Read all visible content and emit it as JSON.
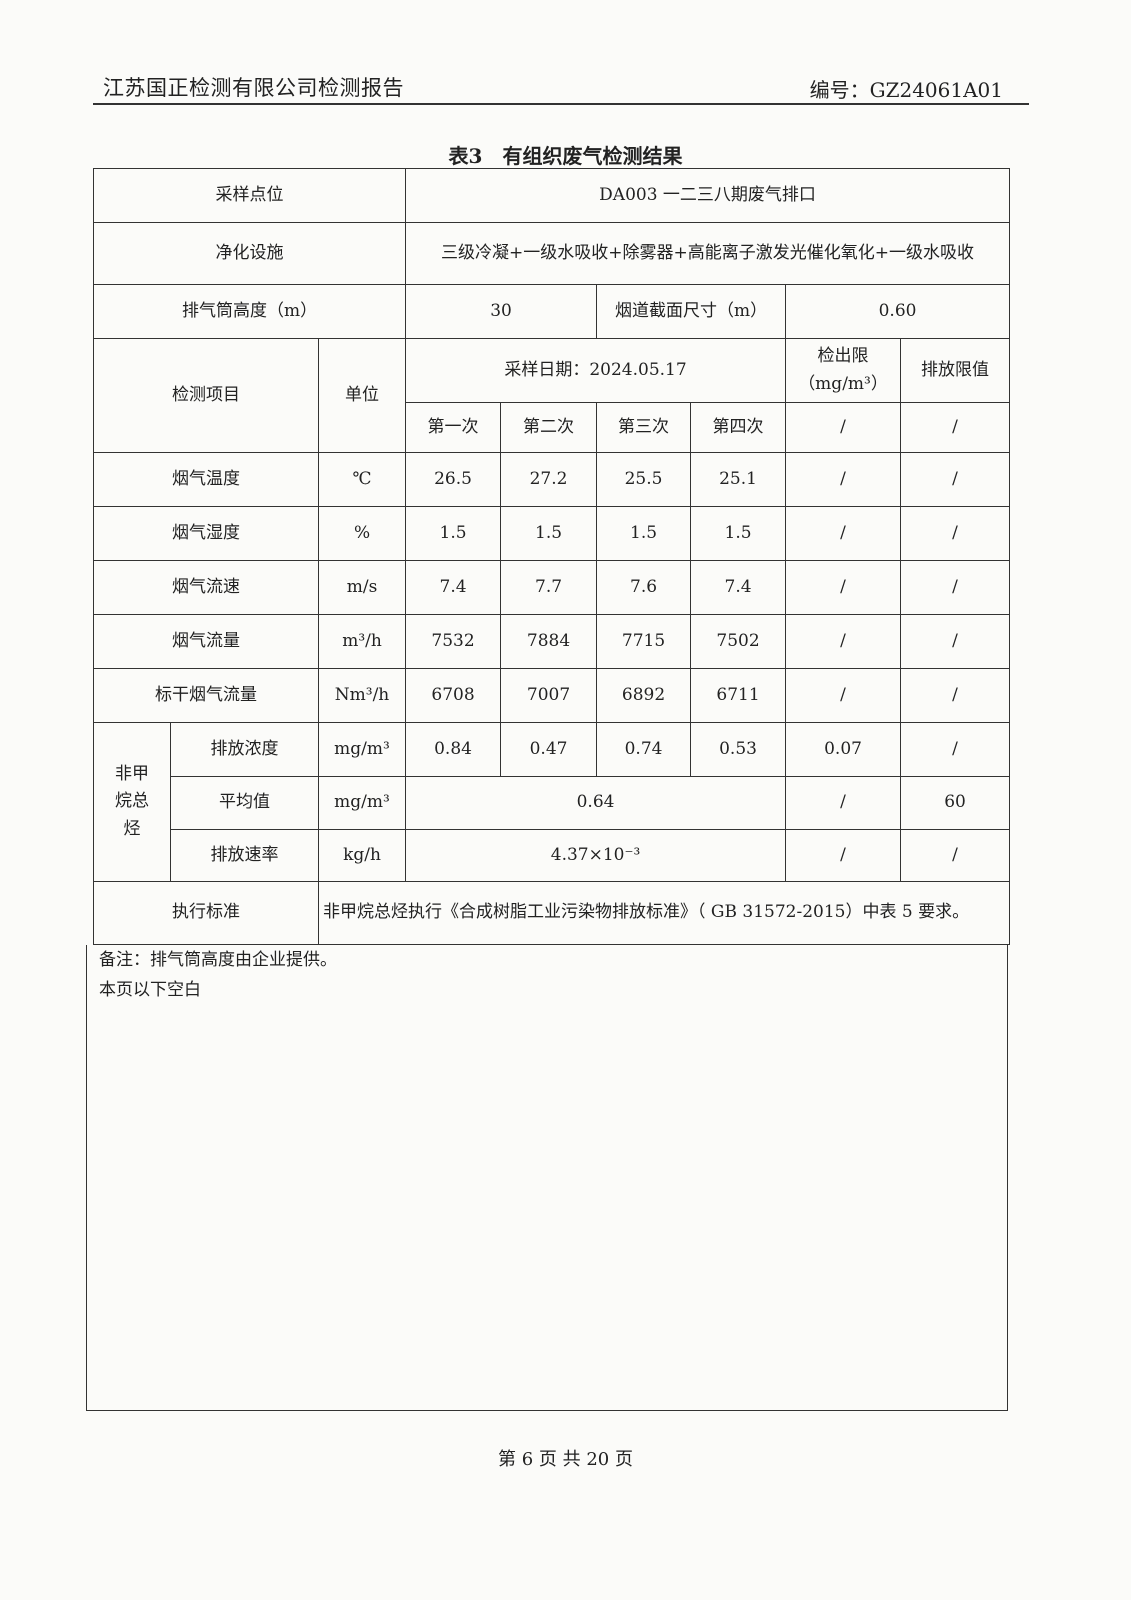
{
  "header": {
    "company_report": "江苏国正检测有限公司检测报告",
    "report_no": "编号：GZ24061A01"
  },
  "table_title": "表3　有组织废气检测结果",
  "info": {
    "sampling_point_label": "采样点位",
    "sampling_point": "DA003 一二三八期废气排口",
    "purification_label": "净化设施",
    "purification": "三级冷凝+一级水吸收+除雾器+高能离子激发光催化氧化+一级水吸收",
    "stack_height_label": "排气筒高度（m）",
    "stack_height": "30",
    "flue_size_label": "烟道截面尺寸（m）",
    "flue_size": "0.60"
  },
  "columns": {
    "item": "检测项目",
    "unit": "单位",
    "sampling_date": "采样日期：2024.05.17",
    "runs": [
      "第一次",
      "第二次",
      "第三次",
      "第四次"
    ],
    "detection_limit": "检出限（mg/m³）",
    "emission_limit": "排放限值",
    "detection_limit_sub": "/",
    "emission_limit_sub": "/"
  },
  "rows": [
    {
      "item": "烟气温度",
      "unit": "℃",
      "values": [
        "26.5",
        "27.2",
        "25.5",
        "25.1"
      ],
      "limit": "/",
      "standard": "/"
    },
    {
      "item": "烟气湿度",
      "unit": "%",
      "values": [
        "1.5",
        "1.5",
        "1.5",
        "1.5"
      ],
      "limit": "/",
      "standard": "/"
    },
    {
      "item": "烟气流速",
      "unit": "m/s",
      "values": [
        "7.4",
        "7.7",
        "7.6",
        "7.4"
      ],
      "limit": "/",
      "standard": "/"
    },
    {
      "item": "烟气流量",
      "unit": "m³/h",
      "values": [
        "7532",
        "7884",
        "7715",
        "7502"
      ],
      "limit": "/",
      "standard": "/"
    },
    {
      "item": "标干烟气流量",
      "unit": "Nm³/h",
      "values": [
        "6708",
        "7007",
        "6892",
        "6711"
      ],
      "limit": "/",
      "standard": "/"
    }
  ],
  "nmhc": {
    "group": "非甲烷总烃",
    "concentration": {
      "label": "排放浓度",
      "unit": "mg/m³",
      "values": [
        "0.84",
        "0.47",
        "0.74",
        "0.53"
      ],
      "limit": "0.07",
      "standard": "/"
    },
    "average": {
      "label": "平均值",
      "unit": "mg/m³",
      "value": "0.64",
      "limit": "/",
      "standard": "60"
    },
    "rate": {
      "label": "排放速率",
      "unit": "kg/h",
      "value": "4.37×10⁻³",
      "limit": "/",
      "standard": "/"
    }
  },
  "standard": {
    "label": "执行标准",
    "text": "非甲烷总烃执行《合成树脂工业污染物排放标准》（ GB 31572-2015）中表 5 要求。"
  },
  "remarks": [
    "备注：排气筒高度由企业提供。",
    "本页以下空白"
  ],
  "footer": "第 6 页 共 20 页"
}
